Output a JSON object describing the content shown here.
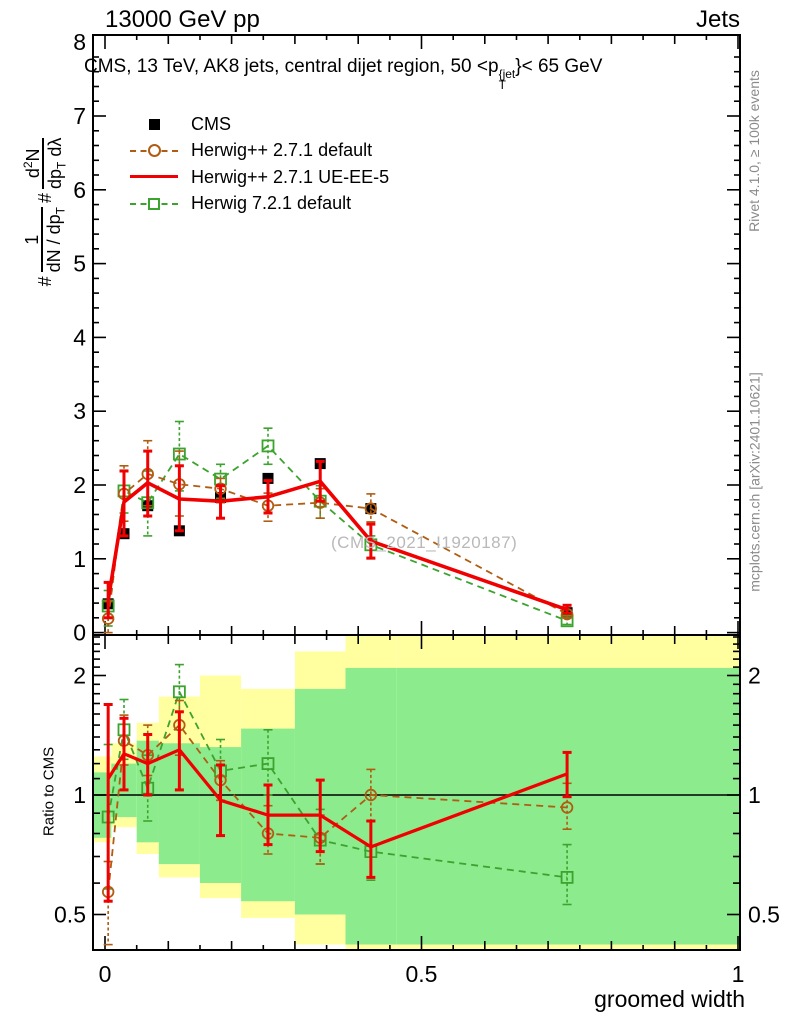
{
  "header": {
    "left": "13000 GeV pp",
    "right": "Jets"
  },
  "plot_title": {
    "pre": "CMS, 13 TeV, AK8 jets, central dijet region, 50 <p",
    "sup": "{jet",
    "sub": "T",
    "post": "}< 65 GeV"
  },
  "watermark": "(CMS_2021_I1920187)",
  "side_notes": {
    "top": "Rivet 4.1.0, ≥ 100k events",
    "bottom": "mcplots.cern.ch [arXiv:2401.10621]"
  },
  "axes": {
    "xlabel": "groomed width",
    "ratio_ylabel": "Ratio to CMS",
    "main_ylabel": {
      "hash1": "#",
      "frac1_num": "1",
      "frac1_den_a": "dN / dp",
      "frac1_den_sub": "T",
      "hash2": "#",
      "frac2_num_a": "d",
      "frac2_num_sup": "2",
      "frac2_num_b": "N",
      "frac2_den_a": "dp",
      "frac2_den_sub": "T",
      "frac2_den_b": " dλ"
    }
  },
  "legend": {
    "items": [
      {
        "label": "CMS",
        "marker": "square-filled",
        "color": "#000000"
      },
      {
        "label": "Herwig++ 2.7.1 default",
        "marker": "circle-open-dashed",
        "color": "#b05c12"
      },
      {
        "label": "Herwig++ 2.7.1 UE-EE-5",
        "marker": "line-solid",
        "color": "#f00000"
      },
      {
        "label": "Herwig 7.2.1 default",
        "marker": "square-open-dashed",
        "color": "#3ca32e"
      }
    ]
  },
  "chart_data": {
    "type": "line",
    "title": "CMS, 13 TeV, AK8 jets, central dijet region, 50 < pT(jet) < 65 GeV",
    "xlabel": "groomed width",
    "ylabel": "1/dN/dpT d2N/dpT dlambda",
    "x": [
      0.005,
      0.03,
      0.0675,
      0.1175,
      0.1825,
      0.2575,
      0.34,
      0.42,
      0.73
    ],
    "bin_edges": [
      0,
      0.01,
      0.05,
      0.085,
      0.15,
      0.215,
      0.3,
      0.38,
      0.46,
      1.0
    ],
    "main_axis": {
      "ylim": [
        0,
        8.1
      ],
      "xlim": [
        -0.019,
        1.003
      ],
      "yticks": [
        0,
        1,
        2,
        3,
        4,
        5,
        6,
        7,
        8
      ],
      "ytick_labels": [
        "0",
        "1",
        "2",
        "3",
        "4",
        "5",
        "6",
        "7",
        "8"
      ],
      "yminor_step": 0.2,
      "xticks": [
        0,
        0.5,
        1
      ],
      "xtick_labels": [
        "0",
        "0.5",
        "1"
      ],
      "xminor_step": 0.05
    },
    "ratio_axis": {
      "rlim": [
        0.407,
        2.53
      ],
      "ticks": [
        0.5,
        1,
        2
      ],
      "tick_labels": [
        "0.5",
        "1",
        "2"
      ],
      "minor": [
        0.6,
        0.7,
        0.8,
        0.9,
        1.1,
        1.2,
        1.3,
        1.4,
        1.5,
        1.6,
        1.7,
        1.8,
        1.9,
        2.1,
        2.2,
        2.3,
        2.4,
        2.5
      ]
    },
    "main": {
      "series": [
        {
          "name": "CMS",
          "marker": "square-filled",
          "line": "none",
          "color": "#000000",
          "values": [
            0.39,
            1.34,
            1.72,
            1.38,
            1.83,
            2.09,
            2.29,
            1.68,
            0.27
          ],
          "lo": [
            0.35,
            1.3,
            1.68,
            1.34,
            1.79,
            2.05,
            2.25,
            1.64,
            0.23
          ],
          "hi": [
            0.43,
            1.38,
            1.76,
            1.42,
            1.87,
            2.13,
            2.33,
            1.72,
            0.31
          ]
        },
        {
          "name": "Herwig++ 2.7.1 default",
          "marker": "circle-open",
          "line": "dashed",
          "color": "#b05c12",
          "values": [
            0.19,
            1.88,
            2.15,
            2.01,
            1.95,
            1.72,
            1.76,
            1.68,
            0.25
          ],
          "lo": [
            0.0,
            1.51,
            1.72,
            1.58,
            1.76,
            1.51,
            1.55,
            1.5,
            0.2
          ],
          "hi": [
            0.42,
            2.26,
            2.6,
            2.46,
            2.09,
            1.89,
            1.95,
            1.88,
            0.31
          ]
        },
        {
          "name": "Herwig++ 2.7.1 UE-EE-5",
          "marker": "none",
          "line": "solid",
          "color": "#f00000",
          "values": [
            0.44,
            1.77,
            2.03,
            1.81,
            1.78,
            1.84,
            2.05,
            1.24,
            0.31
          ],
          "lo": [
            0.2,
            1.31,
            1.58,
            1.38,
            1.55,
            1.62,
            1.78,
            1.01,
            0.26
          ],
          "hi": [
            0.68,
            2.19,
            2.46,
            2.26,
            1.99,
            2.06,
            2.32,
            1.47,
            0.37
          ]
        },
        {
          "name": "Herwig 7.2.1 default",
          "marker": "square-open",
          "line": "dashed",
          "color": "#3ca32e",
          "values": [
            0.36,
            1.92,
            1.76,
            2.42,
            2.08,
            2.53,
            1.78,
            1.19,
            0.16
          ],
          "lo": [
            0.09,
            1.62,
            1.31,
            1.92,
            1.82,
            2.28,
            1.55,
            1.0,
            0.11
          ],
          "hi": [
            0.57,
            2.2,
            2.19,
            2.86,
            2.28,
            2.77,
            1.99,
            1.31,
            0.21
          ]
        }
      ],
      "draw_order": [
        0,
        3,
        1,
        2
      ]
    },
    "ratio": {
      "reference_line": 1.0,
      "series": [
        {
          "name": "Herwig++ 2.7.1 default",
          "marker": "circle-open",
          "line": "dashed",
          "color": "#b05c12",
          "values": [
            0.57,
            1.37,
            1.26,
            1.5,
            1.09,
            0.8,
            0.78,
            1.0,
            0.93
          ],
          "lo": [
            0.42,
            1.19,
            1.12,
            1.26,
            0.97,
            0.71,
            0.67,
            0.86,
            0.82
          ],
          "hi": [
            0.68,
            1.59,
            1.5,
            1.73,
            1.22,
            0.94,
            0.89,
            1.16,
            1.07
          ]
        },
        {
          "name": "Herwig++ 2.7.1 UE-EE-5",
          "marker": "none",
          "line": "solid",
          "color": "#f00000",
          "values": [
            1.1,
            1.27,
            1.2,
            1.3,
            0.97,
            0.89,
            0.89,
            0.74,
            1.13
          ],
          "lo": [
            0.54,
            1.03,
            1.0,
            1.03,
            0.79,
            0.75,
            0.72,
            0.62,
            0.99
          ],
          "hi": [
            1.69,
            1.56,
            1.42,
            1.62,
            1.19,
            1.06,
            1.09,
            0.86,
            1.28
          ]
        },
        {
          "name": "Herwig 7.2.1 default",
          "marker": "square-open",
          "line": "dashed",
          "color": "#3ca32e",
          "values": [
            0.88,
            1.46,
            1.04,
            1.82,
            1.15,
            1.2,
            0.77,
            0.72,
            0.62
          ],
          "lo": [
            0.58,
            1.23,
            0.86,
            1.46,
            0.97,
            1.0,
            0.67,
            0.61,
            0.53
          ],
          "hi": [
            1.34,
            1.74,
            1.26,
            2.13,
            1.38,
            1.46,
            0.92,
            0.86,
            0.75
          ]
        }
      ],
      "draw_order": [
        2,
        0,
        1
      ]
    },
    "bands": {
      "yellow_color": "#ffffa0",
      "green_color": "#8ceb8c",
      "yellow": [
        [
          0.76,
          1.25
        ],
        [
          0.83,
          1.35
        ],
        [
          0.71,
          1.52
        ],
        [
          0.62,
          1.77
        ],
        [
          0.55,
          2.0
        ],
        [
          0.49,
          1.85
        ],
        [
          0.42,
          2.3
        ],
        [
          0.39,
          2.53
        ],
        [
          0.39,
          2.53
        ]
      ],
      "green": [
        [
          0.78,
          1.14
        ],
        [
          0.88,
          1.2
        ],
        [
          0.76,
          1.37
        ],
        [
          0.67,
          1.35
        ],
        [
          0.6,
          1.32
        ],
        [
          0.54,
          1.47
        ],
        [
          0.5,
          1.85
        ],
        [
          0.42,
          2.09
        ],
        [
          0.42,
          2.09
        ]
      ]
    }
  }
}
